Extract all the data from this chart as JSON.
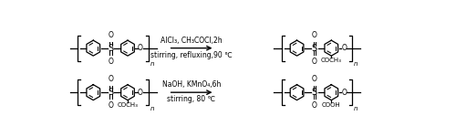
{
  "background_color": "#ffffff",
  "row1": {
    "arrow_text_line1": "AlCl₃, CH₃COCl,2h",
    "arrow_text_line2": "stirring, refluxing,90 ℃",
    "product_substituent": "COCH₃"
  },
  "row2": {
    "reactant_substituent": "COCH₃",
    "arrow_text_line1": "NaOH, KMnO₄,6h",
    "arrow_text_line2": "stirring, 80 ℃",
    "product_substituent": "COOH"
  },
  "lw": 0.9,
  "ring_r": 11,
  "font_main": 5.5,
  "font_sub": 5.0,
  "font_n": 5.0
}
